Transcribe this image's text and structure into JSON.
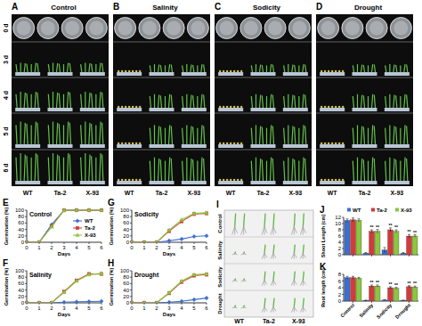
{
  "photo_panels": {
    "row_labels": [
      "0 d",
      "3 d",
      "4 d",
      "5 d",
      "6 d"
    ],
    "genotypes": [
      "WT",
      "Ta-2",
      "X-93"
    ],
    "panels": [
      {
        "panel": "A",
        "title": "Control"
      },
      {
        "panel": "B",
        "title": "Salinity"
      },
      {
        "panel": "C",
        "title": "Sodicity"
      },
      {
        "panel": "D",
        "title": "Drought"
      }
    ]
  },
  "seedling_panel": {
    "panel": "I",
    "row_labels": [
      "Control",
      "Salinity",
      "Sodicity",
      "Drought"
    ],
    "genotypes": [
      "WT",
      "Ta-2",
      "X-93"
    ]
  },
  "chart_data": [
    {
      "type": "line",
      "panel": "E",
      "title": "Control",
      "x_label": "Days",
      "y_label": "Germination (%)",
      "x": [
        0,
        1,
        2,
        3,
        4,
        5,
        6
      ],
      "xlim": [
        0,
        6
      ],
      "xticks": [
        0,
        1,
        2,
        3,
        4,
        5,
        6
      ],
      "ylim": [
        0,
        100
      ],
      "yticks": [
        0,
        20,
        40,
        60,
        80,
        100
      ],
      "legend": "lower right",
      "series": [
        {
          "name": "WT",
          "color": "#3b6fd1",
          "marker": "diamond",
          "values": [
            0,
            0,
            55,
            100,
            100,
            100,
            100
          ]
        },
        {
          "name": "Ta-2",
          "color": "#d13b3b",
          "marker": "square",
          "values": [
            0,
            0,
            50,
            100,
            100,
            100,
            100
          ]
        },
        {
          "name": "X-93",
          "color": "#8cc63f",
          "marker": "triangle",
          "values": [
            0,
            0,
            48,
            100,
            100,
            100,
            100
          ]
        }
      ]
    },
    {
      "type": "line",
      "panel": "F",
      "title": "Salinity",
      "x_label": "Days",
      "y_label": "Germination (%)",
      "x": [
        0,
        1,
        2,
        3,
        4,
        5,
        6
      ],
      "xlim": [
        0,
        6
      ],
      "xticks": [
        0,
        1,
        2,
        3,
        4,
        5,
        6
      ],
      "ylim": [
        0,
        100
      ],
      "yticks": [
        0,
        20,
        40,
        60,
        80,
        100
      ],
      "series": [
        {
          "name": "WT",
          "color": "#3b6fd1",
          "marker": "diamond",
          "values": [
            0,
            0,
            0,
            2,
            3,
            4,
            5
          ]
        },
        {
          "name": "Ta-2",
          "color": "#d13b3b",
          "marker": "square",
          "values": [
            0,
            0,
            0,
            35,
            70,
            90,
            90
          ]
        },
        {
          "name": "X-93",
          "color": "#8cc63f",
          "marker": "triangle",
          "values": [
            0,
            0,
            0,
            33,
            68,
            88,
            92
          ]
        }
      ]
    },
    {
      "type": "line",
      "panel": "G",
      "title": "Sodicity",
      "x_label": "Days",
      "y_label": "Germination (%)",
      "x": [
        0,
        1,
        2,
        3,
        4,
        5,
        6
      ],
      "xlim": [
        0,
        6
      ],
      "xticks": [
        0,
        1,
        2,
        3,
        4,
        5,
        6
      ],
      "ylim": [
        0,
        100
      ],
      "yticks": [
        0,
        20,
        40,
        60,
        80,
        100
      ],
      "series": [
        {
          "name": "WT",
          "color": "#3b6fd1",
          "marker": "diamond",
          "values": [
            0,
            0,
            0,
            5,
            10,
            18,
            20
          ]
        },
        {
          "name": "Ta-2",
          "color": "#d13b3b",
          "marker": "square",
          "values": [
            0,
            0,
            0,
            35,
            65,
            88,
            90
          ]
        },
        {
          "name": "X-93",
          "color": "#8cc63f",
          "marker": "triangle",
          "values": [
            0,
            0,
            0,
            38,
            70,
            90,
            92
          ]
        }
      ]
    },
    {
      "type": "line",
      "panel": "H",
      "title": "Drought",
      "x_label": "Days",
      "y_label": "Germination (%)",
      "x": [
        0,
        1,
        2,
        3,
        4,
        5,
        6
      ],
      "xlim": [
        0,
        6
      ],
      "xticks": [
        0,
        1,
        2,
        3,
        4,
        5,
        6
      ],
      "ylim": [
        0,
        100
      ],
      "yticks": [
        0,
        20,
        40,
        60,
        80,
        100
      ],
      "series": [
        {
          "name": "WT",
          "color": "#3b6fd1",
          "marker": "diamond",
          "values": [
            0,
            0,
            0,
            2,
            5,
            10,
            15
          ]
        },
        {
          "name": "Ta-2",
          "color": "#d13b3b",
          "marker": "square",
          "values": [
            0,
            0,
            0,
            30,
            65,
            85,
            88
          ]
        },
        {
          "name": "X-93",
          "color": "#8cc63f",
          "marker": "triangle",
          "values": [
            0,
            0,
            0,
            32,
            68,
            88,
            90
          ]
        }
      ]
    },
    {
      "type": "bar",
      "panel": "J",
      "y_label": "Shoot Length (cm)",
      "categories": [
        "Control",
        "Salinity",
        "Sodicity",
        "Drought"
      ],
      "ylim": [
        0,
        12
      ],
      "yticks": [
        0,
        2,
        4,
        6,
        8,
        10,
        12
      ],
      "legend": "top",
      "tick_labels": "y",
      "series": [
        {
          "name": "WT",
          "color": "#3b6fd1",
          "values": [
            11,
            0.5,
            1.5,
            0.5
          ],
          "errors": [
            0.5,
            0.2,
            0.8,
            0.2
          ]
        },
        {
          "name": "Ta-2",
          "color": "#d13b3b",
          "values": [
            11.2,
            7.5,
            8,
            6
          ],
          "errors": [
            0.6,
            0.5,
            0.6,
            0.5
          ],
          "significance": [
            null,
            "**",
            "**",
            "**"
          ]
        },
        {
          "name": "X-93",
          "color": "#8cc63f",
          "values": [
            11,
            7.5,
            7.5,
            6
          ],
          "errors": [
            0.5,
            0.6,
            0.5,
            0.4
          ],
          "significance": [
            null,
            "**",
            "**",
            "**"
          ]
        }
      ]
    },
    {
      "type": "bar",
      "panel": "K",
      "y_label": "Root length (cm)",
      "categories": [
        "Control",
        "Salinity",
        "Sodicity",
        "Drought"
      ],
      "ylim": [
        0,
        8
      ],
      "yticks": [
        0,
        2,
        4,
        6,
        8
      ],
      "series": [
        {
          "name": "WT",
          "color": "#3b6fd1",
          "values": [
            7,
            0.2,
            0.3,
            0.2
          ],
          "errors": [
            0.4,
            0.1,
            0.1,
            0.1
          ]
        },
        {
          "name": "Ta-2",
          "color": "#d13b3b",
          "values": [
            7,
            4.5,
            4,
            4.3
          ],
          "errors": [
            0.4,
            0.3,
            0.3,
            0.3
          ],
          "significance": [
            null,
            "**",
            "**",
            "**"
          ]
        },
        {
          "name": "X-93",
          "color": "#8cc63f",
          "values": [
            6.8,
            4.5,
            3.8,
            4.2
          ],
          "errors": [
            0.3,
            0.3,
            0.3,
            0.3
          ],
          "significance": [
            null,
            "**",
            "**",
            "**"
          ]
        }
      ]
    }
  ]
}
